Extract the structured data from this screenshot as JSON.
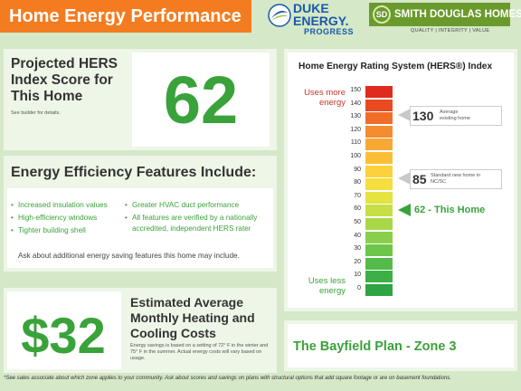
{
  "header": {
    "title": "Home Energy Performance"
  },
  "logos": {
    "duke": {
      "line1": "DUKE",
      "line2": "ENERGY.",
      "sub": "PROGRESS"
    },
    "smith_douglas": {
      "monogram": "SD",
      "name": "SMITH DOUGLAS HOMES",
      "tagline": "QUALITY | INTEGRITY | VALUE"
    }
  },
  "hers_score": {
    "title": "Projected HERS Index Score for This Home",
    "note": "See builder for details.",
    "score": "62"
  },
  "features": {
    "title": "Energy Efficiency Features Include:",
    "left_items": [
      "Increased insulation values",
      "High-efficiency windows",
      "Tighter building shell"
    ],
    "right_items": [
      "Greater HVAC duct performance",
      "All features are verified by a nationally accredited, independent HERS rater"
    ],
    "ask": "Ask about additional energy saving features this home may include."
  },
  "costs": {
    "amount": "$32",
    "title": "Estimated Average Monthly Heating and Cooling Costs",
    "note": "Energy savings is based on a setting of 72° F in the winter and 75° F in the summer. Actual energy costs will vary based on usage."
  },
  "scale": {
    "title": "Home Energy Rating System (HERS®) Index",
    "more_label": "Uses more energy",
    "less_label": "Uses less energy",
    "ticks": [
      "150",
      "140",
      "130",
      "120",
      "110",
      "100",
      "90",
      "80",
      "70",
      "60",
      "50",
      "40",
      "30",
      "20",
      "10",
      "0"
    ],
    "colors": [
      "#e02a1e",
      "#ea4a22",
      "#f06e2a",
      "#f58d30",
      "#f8a834",
      "#fbbf36",
      "#fcd13a",
      "#f5de3d",
      "#e3e440",
      "#c6df45",
      "#a8d84a",
      "#8acf4b",
      "#6dc64b",
      "#53bb49",
      "#3cb047",
      "#2ea443"
    ],
    "callouts": [
      {
        "value": "130",
        "label": "Average existing home"
      },
      {
        "value": "85",
        "label": "Standard new home in NC/SC"
      },
      {
        "value": "62 - This Home"
      }
    ]
  },
  "plan": {
    "name": "The Bayfield Plan - Zone 3"
  },
  "footnote": "*See sales associate about which zone applies to your community.  Ask about scores and savings on plans with structural options that add square footage or are on basement foundations."
}
